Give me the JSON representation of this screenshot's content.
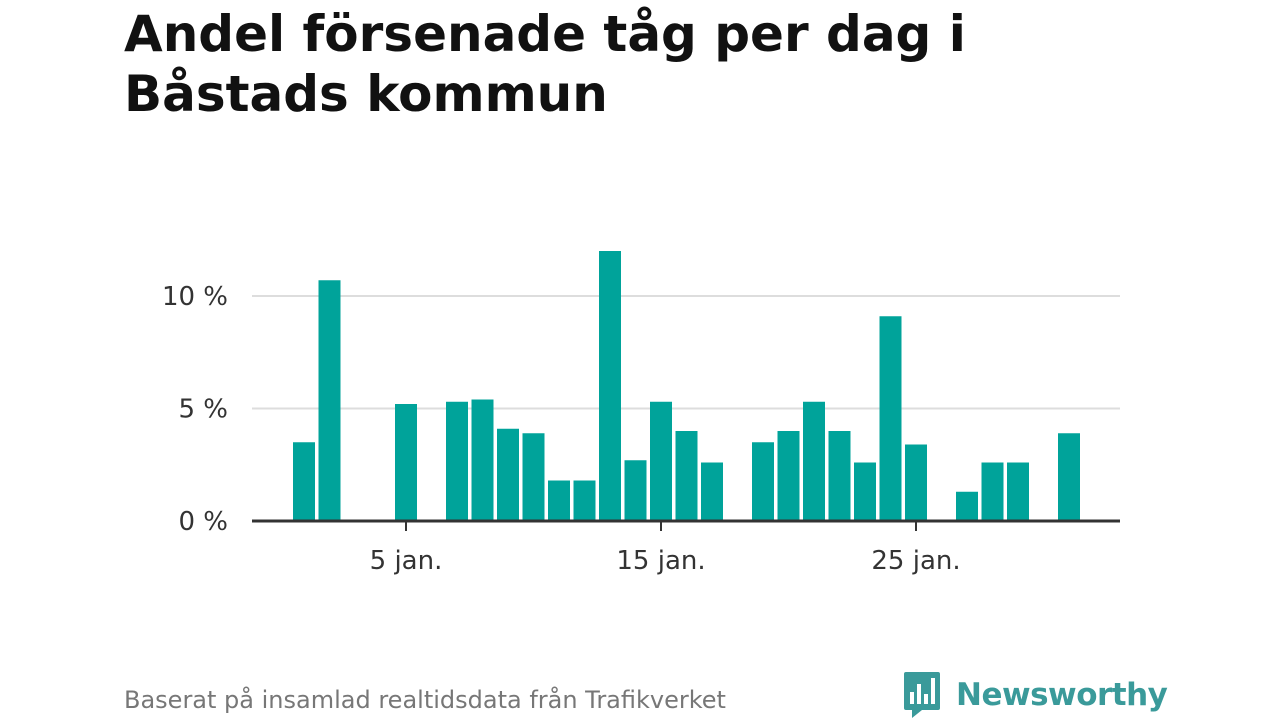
{
  "chart_data": {
    "type": "bar",
    "title": "Andel försenade tåg per dag i Båstads kommun",
    "x": [
      1,
      2,
      3,
      4,
      5,
      6,
      7,
      8,
      9,
      10,
      11,
      12,
      13,
      14,
      15,
      16,
      17,
      18,
      19,
      20,
      21,
      22,
      23,
      24,
      25,
      26,
      27,
      28,
      29,
      30,
      31
    ],
    "values": [
      3.5,
      10.7,
      0,
      0,
      5.2,
      0,
      5.3,
      5.4,
      4.1,
      3.9,
      1.8,
      1.8,
      12.0,
      2.7,
      5.3,
      4.0,
      2.6,
      0,
      3.5,
      4.0,
      5.3,
      4.0,
      2.6,
      9.1,
      3.4,
      0,
      1.3,
      2.6,
      2.6,
      0,
      3.9
    ],
    "x_ticks": [
      {
        "x": 5,
        "label": "5 jan."
      },
      {
        "x": 15,
        "label": "15 jan."
      },
      {
        "x": 25,
        "label": "25 jan."
      }
    ],
    "y_ticks": [
      {
        "value": 0,
        "label": "0 %"
      },
      {
        "value": 5,
        "label": "5 %"
      },
      {
        "value": 10,
        "label": "10 %"
      }
    ],
    "ylim": [
      0,
      12
    ],
    "xlabel": "",
    "ylabel": "",
    "grid": true,
    "bar_color": "#00a39a"
  },
  "footer": {
    "source": "Baserat på insamlad realtidsdata från Trafikverket",
    "brand": "Newsworthy",
    "brand_color": "#3a9a9a"
  }
}
